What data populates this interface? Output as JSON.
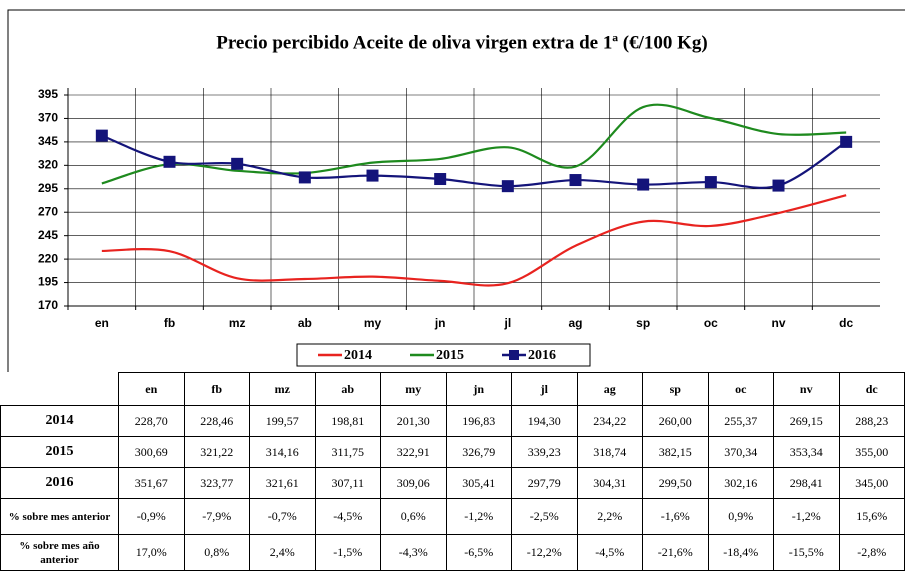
{
  "chart_data": {
    "type": "line",
    "title": "Precio percibido Aceite de oliva virgen extra de 1ª (€/100 Kg)",
    "categories": [
      "en",
      "fb",
      "mz",
      "ab",
      "my",
      "jn",
      "jl",
      "ag",
      "sp",
      "oc",
      "nv",
      "dc"
    ],
    "ylim": [
      170,
      395
    ],
    "yticks": [
      170,
      195,
      220,
      245,
      270,
      295,
      320,
      345,
      370,
      395
    ],
    "grid": true,
    "legend": "bottom",
    "series": [
      {
        "name": "2014",
        "color": "#e8231f",
        "values": [
          228.7,
          228.46,
          199.57,
          198.81,
          201.3,
          196.83,
          194.3,
          234.22,
          260.0,
          255.37,
          269.15,
          288.23
        ],
        "value_labels": [
          "228,70",
          "228,46",
          "199,57",
          "198,81",
          "201,30",
          "196,83",
          "194,30",
          "234,22",
          "260,00",
          "255,37",
          "269,15",
          "288,23"
        ]
      },
      {
        "name": "2015",
        "color": "#1e8a1e",
        "values": [
          300.69,
          321.22,
          314.16,
          311.75,
          322.91,
          326.79,
          339.23,
          318.74,
          382.15,
          370.34,
          353.34,
          355.0
        ],
        "value_labels": [
          "300,69",
          "321,22",
          "314,16",
          "311,75",
          "322,91",
          "326,79",
          "339,23",
          "318,74",
          "382,15",
          "370,34",
          "353,34",
          "355,00"
        ]
      },
      {
        "name": "2016",
        "color": "#14147a",
        "marker": "square",
        "values": [
          351.67,
          323.77,
          321.61,
          307.11,
          309.06,
          305.41,
          297.79,
          304.31,
          299.5,
          302.16,
          298.41,
          345.0
        ],
        "value_labels": [
          "351,67",
          "323,77",
          "321,61",
          "307,11",
          "309,06",
          "305,41",
          "297,79",
          "304,31",
          "299,50",
          "302,16",
          "298,41",
          "345,00"
        ]
      }
    ]
  },
  "table": {
    "rows": [
      {
        "label": "% sobre mes anterior",
        "values": [
          "-0,9%",
          "-7,9%",
          "-0,7%",
          "-4,5%",
          "0,6%",
          "-1,2%",
          "-2,5%",
          "2,2%",
          "-1,6%",
          "0,9%",
          "-1,2%",
          "15,6%"
        ]
      },
      {
        "label": "% sobre mes año anterior",
        "values": [
          "17,0%",
          "0,8%",
          "2,4%",
          "-1,5%",
          "-4,3%",
          "-6,5%",
          "-12,2%",
          "-4,5%",
          "-21,6%",
          "-18,4%",
          "-15,5%",
          "-2,8%"
        ]
      }
    ]
  }
}
